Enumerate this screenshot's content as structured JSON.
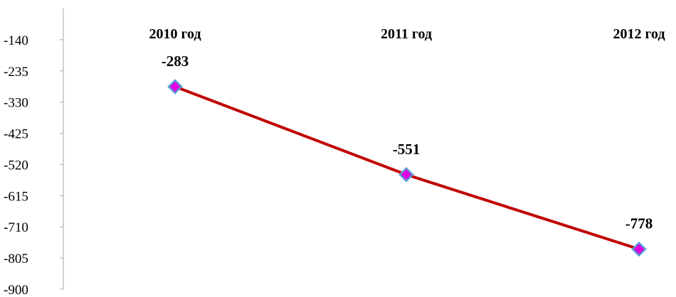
{
  "chart_data": {
    "type": "line",
    "categories": [
      "2010 год",
      "2011 год",
      "2012 год"
    ],
    "values": [
      -283,
      -551,
      -778
    ],
    "data_labels": [
      "-283",
      "-551",
      "-778"
    ],
    "y_ticks": [
      -140,
      -235,
      -330,
      -425,
      -520,
      -615,
      -710,
      -805,
      -900
    ],
    "y_tick_labels": [
      "-140",
      "-235",
      "-330",
      "-425",
      "-520",
      "-615",
      "-710",
      "-805",
      "-900"
    ],
    "ylim": [
      -900,
      -45
    ],
    "category_labels_position": "top",
    "grid": false,
    "legend": false,
    "colors": {
      "line": "#C00000",
      "marker_fill": "#E000E0",
      "marker_edge": "#5B9BD5",
      "axis": "#A6A6A6"
    }
  }
}
